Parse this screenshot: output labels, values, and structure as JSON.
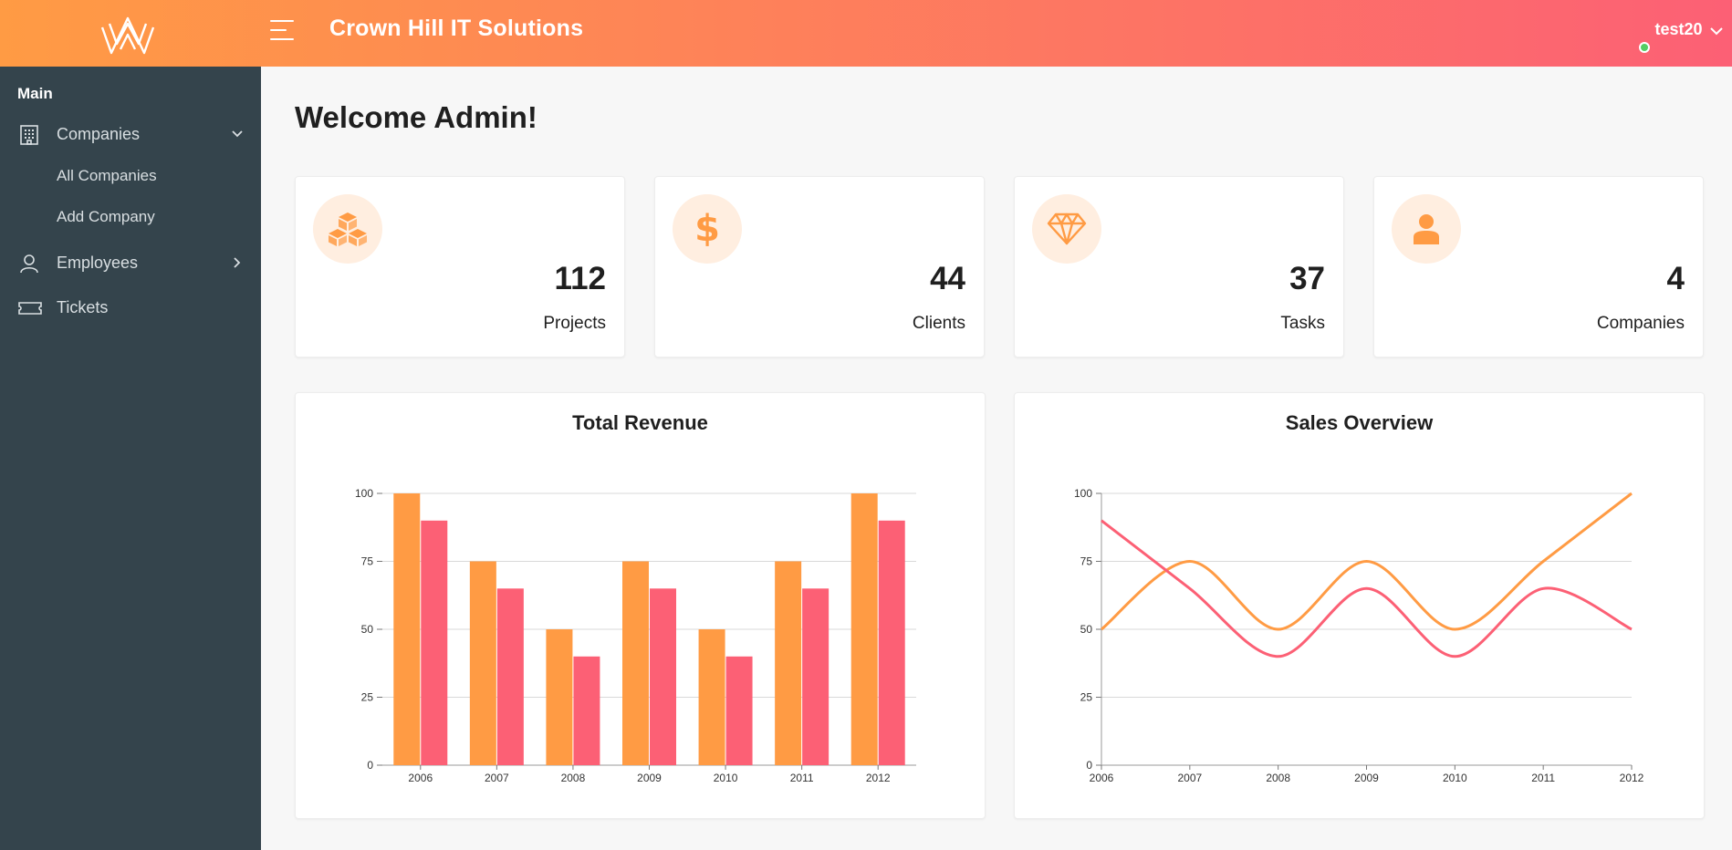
{
  "header": {
    "app_title": "Crown Hill IT Solutions",
    "username": "test20",
    "colors": {
      "gradient_start": "#ff9b44",
      "gradient_end": "#fc6075",
      "online": "#55ce63"
    }
  },
  "sidebar": {
    "section_title": "Main",
    "items": [
      {
        "label": "Companies",
        "icon": "building-icon",
        "arrow": "chevron-down-icon"
      },
      {
        "label": "Employees",
        "icon": "user-icon",
        "arrow": "chevron-right-icon"
      },
      {
        "label": "Tickets",
        "icon": "ticket-icon"
      }
    ],
    "companies_sub": [
      "All Companies",
      "Add Company"
    ]
  },
  "main": {
    "welcome": "Welcome Admin!",
    "stats": [
      {
        "value": "112",
        "label": "Projects",
        "icon": "cubes-icon"
      },
      {
        "value": "44",
        "label": "Clients",
        "icon": "dollar-icon"
      },
      {
        "value": "37",
        "label": "Tasks",
        "icon": "gem-icon"
      },
      {
        "value": "4",
        "label": "Companies",
        "icon": "user-icon"
      }
    ]
  },
  "chart_data": [
    {
      "type": "bar",
      "title": "Total Revenue",
      "categories": [
        "2006",
        "2007",
        "2008",
        "2009",
        "2010",
        "2011",
        "2012"
      ],
      "series": [
        {
          "values": [
            100,
            75,
            50,
            75,
            50,
            75,
            100
          ],
          "color": "#ff9b44"
        },
        {
          "values": [
            90,
            65,
            40,
            65,
            40,
            65,
            90
          ],
          "color": "#fc6075"
        }
      ],
      "ylim": [
        0,
        100
      ],
      "yticks": [
        0,
        25,
        50,
        75,
        100
      ],
      "grid": true
    },
    {
      "type": "line",
      "title": "Sales Overview",
      "x": [
        "2006",
        "2007",
        "2008",
        "2009",
        "2010",
        "2011",
        "2012"
      ],
      "series": [
        {
          "values": [
            50,
            75,
            50,
            75,
            50,
            75,
            100
          ],
          "color": "#ff9b44"
        },
        {
          "values": [
            90,
            65,
            40,
            65,
            40,
            65,
            50
          ],
          "color": "#fc6075"
        }
      ],
      "ylim": [
        0,
        100
      ],
      "yticks": [
        0,
        25,
        50,
        75,
        100
      ],
      "grid": true
    }
  ]
}
